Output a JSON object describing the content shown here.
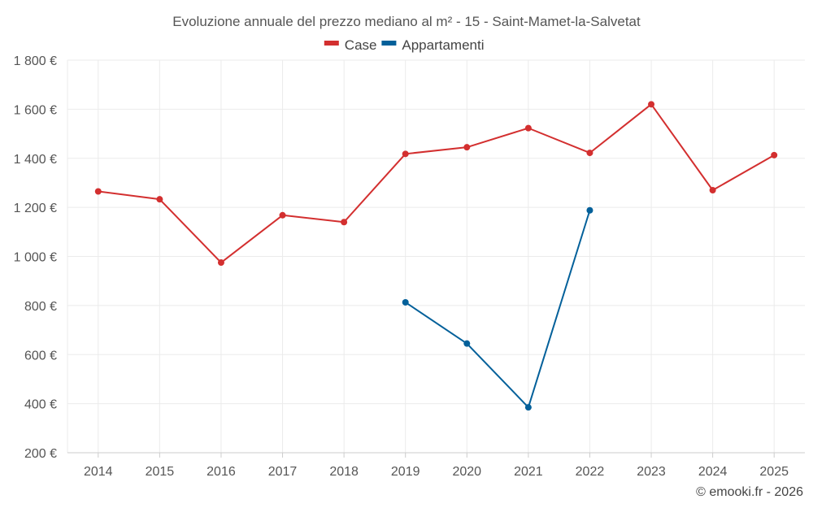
{
  "chart_data": {
    "type": "line",
    "title": "Evoluzione annuale del prezzo mediano al m² - 15 - Saint-Mamet-la-Salvetat",
    "categories": [
      "2014",
      "2015",
      "2016",
      "2017",
      "2018",
      "2019",
      "2020",
      "2021",
      "2022",
      "2023",
      "2024",
      "2025"
    ],
    "ylim": [
      200,
      1800
    ],
    "yticks": [
      200,
      400,
      600,
      800,
      1000,
      1200,
      1400,
      1600,
      1800
    ],
    "ytick_labels": [
      "200 €",
      "400 €",
      "600 €",
      "800 €",
      "1 000 €",
      "1 200 €",
      "1 400 €",
      "1 600 €",
      "1 800 €"
    ],
    "series": [
      {
        "name": "Case",
        "color": "#d32f2f",
        "values": [
          1265,
          1233,
          975,
          1168,
          1140,
          1418,
          1445,
          1523,
          1422,
          1620,
          1270,
          1413
        ]
      },
      {
        "name": "Appartamenti",
        "color": "#03609a",
        "values": [
          null,
          null,
          null,
          null,
          null,
          813,
          645,
          385,
          1188,
          null,
          null,
          null
        ]
      }
    ],
    "legend_position": "top-center",
    "grid": true,
    "credit": "© emooki.fr - 2026"
  }
}
